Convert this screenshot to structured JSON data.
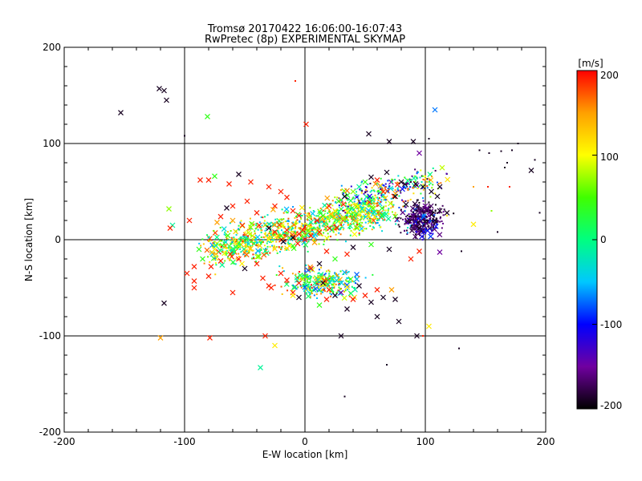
{
  "chart_data": {
    "type": "scatter",
    "title": "Tromsø 20170422 16:06:00-16:07:43",
    "subtitle": "RwPretec (8p) EXPERIMENTAL SKYMAP",
    "xlabel": "E-W location [km]",
    "ylabel": "N-S location [km]",
    "xlim": [
      -200,
      200
    ],
    "ylim": [
      -200,
      200
    ],
    "xticks": [
      "-200",
      "-100",
      "0",
      "100",
      "200"
    ],
    "yticks": [
      "-200",
      "-100",
      "0",
      "100",
      "200"
    ],
    "grid": "lines at -100, 0, 100 on both axes",
    "markers": "small dots and crosses, colored by velocity",
    "colorbar": {
      "label": "[m/s]",
      "range": [
        -200,
        200
      ],
      "ticks": [
        "200",
        "100",
        "0",
        "-100",
        "-200"
      ],
      "colormap": [
        "#000000",
        "#7000a0",
        "#0000ff",
        "#00c8ff",
        "#00ff80",
        "#40ff00",
        "#ffff00",
        "#ffa000",
        "#ff0000"
      ]
    },
    "points": [
      {
        "x": -121,
        "y": 157,
        "v": -190,
        "m": "x"
      },
      {
        "x": -117,
        "y": 155,
        "v": -190,
        "m": "x"
      },
      {
        "x": -115,
        "y": 145,
        "v": -190,
        "m": "x"
      },
      {
        "x": -153,
        "y": 132,
        "v": -190,
        "m": "x"
      },
      {
        "x": -81,
        "y": 128,
        "v": 40,
        "m": "x"
      },
      {
        "x": 1,
        "y": 120,
        "v": 190,
        "m": "x"
      },
      {
        "x": -8,
        "y": 165,
        "v": 190,
        "m": "d"
      },
      {
        "x": -100,
        "y": 108,
        "v": -190,
        "m": "d"
      },
      {
        "x": 53,
        "y": 110,
        "v": -190,
        "m": "x"
      },
      {
        "x": 70,
        "y": 102,
        "v": -190,
        "m": "x"
      },
      {
        "x": 90,
        "y": 102,
        "v": -190,
        "m": "x"
      },
      {
        "x": 108,
        "y": 135,
        "v": -70,
        "m": "x"
      },
      {
        "x": 95,
        "y": 90,
        "v": -150,
        "m": "x"
      },
      {
        "x": 153,
        "y": 90,
        "v": -190,
        "m": "d"
      },
      {
        "x": 163,
        "y": 92,
        "v": -190,
        "m": "d"
      },
      {
        "x": 172,
        "y": 93,
        "v": -190,
        "m": "d"
      },
      {
        "x": 177,
        "y": 100,
        "v": -190,
        "m": "d"
      },
      {
        "x": 168,
        "y": 80,
        "v": -190,
        "m": "d"
      },
      {
        "x": 145,
        "y": 93,
        "v": -190,
        "m": "d"
      },
      {
        "x": 191,
        "y": 83,
        "v": -190,
        "m": "d"
      },
      {
        "x": 188,
        "y": 72,
        "v": -190,
        "m": "x"
      },
      {
        "x": 166,
        "y": 75,
        "v": -190,
        "m": "d"
      },
      {
        "x": 103,
        "y": 105,
        "v": -190,
        "m": "d"
      },
      {
        "x": -87,
        "y": 62,
        "v": 190,
        "m": "x"
      },
      {
        "x": -80,
        "y": 62,
        "v": 190,
        "m": "x"
      },
      {
        "x": -75,
        "y": 66,
        "v": 40,
        "m": "x"
      },
      {
        "x": -63,
        "y": 58,
        "v": 190,
        "m": "x"
      },
      {
        "x": -55,
        "y": 68,
        "v": -190,
        "m": "x"
      },
      {
        "x": -45,
        "y": 60,
        "v": 190,
        "m": "x"
      },
      {
        "x": -30,
        "y": 55,
        "v": 190,
        "m": "x"
      },
      {
        "x": -20,
        "y": 50,
        "v": 190,
        "m": "x"
      },
      {
        "x": -65,
        "y": 33,
        "v": -190,
        "m": "x"
      },
      {
        "x": -60,
        "y": 35,
        "v": 190,
        "m": "x"
      },
      {
        "x": -48,
        "y": 40,
        "v": 190,
        "m": "x"
      },
      {
        "x": -40,
        "y": 28,
        "v": 190,
        "m": "x"
      },
      {
        "x": -25,
        "y": 35,
        "v": 190,
        "m": "x"
      },
      {
        "x": -15,
        "y": 44,
        "v": 190,
        "m": "x"
      },
      {
        "x": -10,
        "y": 30,
        "v": 190,
        "m": "x"
      },
      {
        "x": -5,
        "y": 25,
        "v": 190,
        "m": "x"
      },
      {
        "x": -113,
        "y": 32,
        "v": 70,
        "m": "x"
      },
      {
        "x": -110,
        "y": 15,
        "v": -10,
        "m": "x"
      },
      {
        "x": -112,
        "y": 12,
        "v": 190,
        "m": "x"
      },
      {
        "x": -96,
        "y": 20,
        "v": 190,
        "m": "x"
      },
      {
        "x": -73,
        "y": 18,
        "v": 150,
        "m": "x"
      },
      {
        "x": -70,
        "y": 24,
        "v": 190,
        "m": "x"
      },
      {
        "x": -60,
        "y": 20,
        "v": 150,
        "m": "x"
      },
      {
        "x": -52,
        "y": 15,
        "v": 190,
        "m": "x"
      },
      {
        "x": -45,
        "y": 13,
        "v": 70,
        "m": "x"
      },
      {
        "x": -38,
        "y": 15,
        "v": 190,
        "m": "x"
      },
      {
        "x": -30,
        "y": 12,
        "v": -190,
        "m": "x"
      },
      {
        "x": -25,
        "y": 8,
        "v": 190,
        "m": "x"
      },
      {
        "x": -20,
        "y": 4,
        "v": 40,
        "m": "x"
      },
      {
        "x": -15,
        "y": 10,
        "v": 190,
        "m": "x"
      },
      {
        "x": -10,
        "y": 2,
        "v": -190,
        "m": "x"
      },
      {
        "x": -5,
        "y": 6,
        "v": 190,
        "m": "x"
      },
      {
        "x": 0,
        "y": 0,
        "v": 190,
        "m": "x"
      },
      {
        "x": 5,
        "y": 4,
        "v": 190,
        "m": "x"
      },
      {
        "x": 8,
        "y": -3,
        "v": 150,
        "m": "x"
      },
      {
        "x": 12,
        "y": 8,
        "v": 190,
        "m": "x"
      },
      {
        "x": -2,
        "y": 10,
        "v": 190,
        "m": "x"
      },
      {
        "x": 3,
        "y": 14,
        "v": 110,
        "m": "x"
      },
      {
        "x": -6,
        "y": -4,
        "v": 190,
        "m": "x"
      },
      {
        "x": -18,
        "y": -2,
        "v": -190,
        "m": "x"
      },
      {
        "x": 10,
        "y": 20,
        "v": 190,
        "m": "x"
      },
      {
        "x": 15,
        "y": 25,
        "v": 40,
        "m": "x"
      },
      {
        "x": 20,
        "y": 35,
        "v": 190,
        "m": "x"
      },
      {
        "x": 25,
        "y": 30,
        "v": 110,
        "m": "x"
      },
      {
        "x": 28,
        "y": 40,
        "v": 40,
        "m": "x"
      },
      {
        "x": 33,
        "y": 45,
        "v": -190,
        "m": "x"
      },
      {
        "x": 40,
        "y": 50,
        "v": 70,
        "m": "x"
      },
      {
        "x": 45,
        "y": 55,
        "v": -10,
        "m": "x"
      },
      {
        "x": 50,
        "y": 60,
        "v": 40,
        "m": "x"
      },
      {
        "x": 55,
        "y": 65,
        "v": -190,
        "m": "x"
      },
      {
        "x": 60,
        "y": 62,
        "v": 190,
        "m": "x"
      },
      {
        "x": 68,
        "y": 70,
        "v": -190,
        "m": "x"
      },
      {
        "x": 75,
        "y": 45,
        "v": -190,
        "m": "x"
      },
      {
        "x": 80,
        "y": 60,
        "v": -190,
        "m": "x"
      },
      {
        "x": 92,
        "y": 58,
        "v": -190,
        "m": "x"
      },
      {
        "x": 98,
        "y": 55,
        "v": -190,
        "m": "x"
      },
      {
        "x": 105,
        "y": 50,
        "v": -190,
        "m": "x"
      },
      {
        "x": 110,
        "y": 45,
        "v": -190,
        "m": "x"
      },
      {
        "x": 100,
        "y": 35,
        "v": -150,
        "m": "x"
      },
      {
        "x": 103,
        "y": 25,
        "v": -150,
        "m": "x"
      },
      {
        "x": 108,
        "y": 20,
        "v": -190,
        "m": "x"
      },
      {
        "x": 95,
        "y": 12,
        "v": -190,
        "m": "x"
      },
      {
        "x": 112,
        "y": 30,
        "v": -190,
        "m": "x"
      },
      {
        "x": 118,
        "y": 28,
        "v": -190,
        "m": "x"
      },
      {
        "x": 140,
        "y": 16,
        "v": 110,
        "m": "x"
      },
      {
        "x": 112,
        "y": 55,
        "v": -190,
        "m": "x"
      },
      {
        "x": 112,
        "y": -13,
        "v": -150,
        "m": "x"
      },
      {
        "x": 95,
        "y": -12,
        "v": 190,
        "m": "x"
      },
      {
        "x": 88,
        "y": -20,
        "v": 190,
        "m": "x"
      },
      {
        "x": 70,
        "y": -10,
        "v": -190,
        "m": "x"
      },
      {
        "x": 55,
        "y": -5,
        "v": 40,
        "m": "x"
      },
      {
        "x": 40,
        "y": -8,
        "v": -190,
        "m": "x"
      },
      {
        "x": 35,
        "y": -15,
        "v": 190,
        "m": "x"
      },
      {
        "x": 25,
        "y": -20,
        "v": 40,
        "m": "x"
      },
      {
        "x": 18,
        "y": -12,
        "v": 190,
        "m": "x"
      },
      {
        "x": 12,
        "y": -25,
        "v": -190,
        "m": "x"
      },
      {
        "x": 5,
        "y": -30,
        "v": 190,
        "m": "x"
      },
      {
        "x": 0,
        "y": -38,
        "v": 40,
        "m": "x"
      },
      {
        "x": -5,
        "y": -45,
        "v": 190,
        "m": "x"
      },
      {
        "x": -10,
        "y": -55,
        "v": 190,
        "m": "x"
      },
      {
        "x": -15,
        "y": -42,
        "v": 190,
        "m": "x"
      },
      {
        "x": -20,
        "y": -35,
        "v": 190,
        "m": "x"
      },
      {
        "x": -28,
        "y": -50,
        "v": 190,
        "m": "x"
      },
      {
        "x": -35,
        "y": -40,
        "v": 190,
        "m": "x"
      },
      {
        "x": -40,
        "y": -25,
        "v": 190,
        "m": "x"
      },
      {
        "x": -50,
        "y": -30,
        "v": -190,
        "m": "x"
      },
      {
        "x": -55,
        "y": -20,
        "v": 190,
        "m": "x"
      },
      {
        "x": -62,
        "y": -15,
        "v": 190,
        "m": "x"
      },
      {
        "x": -70,
        "y": -22,
        "v": 190,
        "m": "x"
      },
      {
        "x": -78,
        "y": -28,
        "v": 190,
        "m": "x"
      },
      {
        "x": -85,
        "y": -20,
        "v": 40,
        "m": "x"
      },
      {
        "x": -92,
        "y": -28,
        "v": 190,
        "m": "x"
      },
      {
        "x": -98,
        "y": -35,
        "v": 190,
        "m": "x"
      },
      {
        "x": -92,
        "y": -43,
        "v": 190,
        "m": "x"
      },
      {
        "x": -80,
        "y": -38,
        "v": 190,
        "m": "x"
      },
      {
        "x": -75,
        "y": -10,
        "v": 110,
        "m": "x"
      },
      {
        "x": -88,
        "y": -10,
        "v": 40,
        "m": "x"
      },
      {
        "x": -117,
        "y": -66,
        "v": -190,
        "m": "x"
      },
      {
        "x": -92,
        "y": -50,
        "v": 190,
        "m": "x"
      },
      {
        "x": 15,
        "y": -45,
        "v": -190,
        "m": "x"
      },
      {
        "x": 20,
        "y": -52,
        "v": 190,
        "m": "x"
      },
      {
        "x": 25,
        "y": -58,
        "v": -190,
        "m": "x"
      },
      {
        "x": 18,
        "y": -62,
        "v": 190,
        "m": "x"
      },
      {
        "x": 12,
        "y": -68,
        "v": 40,
        "m": "x"
      },
      {
        "x": 30,
        "y": -55,
        "v": -150,
        "m": "x"
      },
      {
        "x": 40,
        "y": -62,
        "v": 190,
        "m": "x"
      },
      {
        "x": 45,
        "y": -48,
        "v": -190,
        "m": "x"
      },
      {
        "x": 50,
        "y": -58,
        "v": 190,
        "m": "x"
      },
      {
        "x": 55,
        "y": -65,
        "v": -190,
        "m": "x"
      },
      {
        "x": 60,
        "y": -52,
        "v": 190,
        "m": "x"
      },
      {
        "x": 65,
        "y": -60,
        "v": -190,
        "m": "x"
      },
      {
        "x": 72,
        "y": -52,
        "v": 150,
        "m": "x"
      },
      {
        "x": 75,
        "y": -62,
        "v": -190,
        "m": "x"
      },
      {
        "x": 35,
        "y": -72,
        "v": -190,
        "m": "x"
      },
      {
        "x": 60,
        "y": -80,
        "v": -190,
        "m": "x"
      },
      {
        "x": 78,
        "y": -85,
        "v": -190,
        "m": "x"
      },
      {
        "x": 103,
        "y": -90,
        "v": 110,
        "m": "x"
      },
      {
        "x": -5,
        "y": -60,
        "v": -190,
        "m": "x"
      },
      {
        "x": -60,
        "y": -55,
        "v": 190,
        "m": "x"
      },
      {
        "x": -30,
        "y": -48,
        "v": 190,
        "m": "x"
      },
      {
        "x": -10,
        "y": -58,
        "v": 110,
        "m": "x"
      },
      {
        "x": -120,
        "y": -102,
        "v": 150,
        "m": "x"
      },
      {
        "x": -79,
        "y": -102,
        "v": 190,
        "m": "x"
      },
      {
        "x": -33,
        "y": -100,
        "v": 190,
        "m": "x"
      },
      {
        "x": -25,
        "y": -110,
        "v": 110,
        "m": "x"
      },
      {
        "x": -37,
        "y": -133,
        "v": -10,
        "m": "x"
      },
      {
        "x": 30,
        "y": -100,
        "v": -190,
        "m": "x"
      },
      {
        "x": 93,
        "y": -100,
        "v": -190,
        "m": "x"
      },
      {
        "x": 98,
        "y": -100,
        "v": 190,
        "m": "d"
      },
      {
        "x": 128,
        "y": -113,
        "v": -190,
        "m": "d"
      },
      {
        "x": 68,
        "y": -130,
        "v": -190,
        "m": "d"
      },
      {
        "x": 33,
        "y": -163,
        "v": -190,
        "m": "d"
      },
      {
        "x": 152,
        "y": 55,
        "v": 190,
        "m": "d"
      },
      {
        "x": 170,
        "y": 55,
        "v": 190,
        "m": "d"
      },
      {
        "x": 155,
        "y": 30,
        "v": 70,
        "m": "d"
      },
      {
        "x": 160,
        "y": 8,
        "v": -190,
        "m": "d"
      },
      {
        "x": 195,
        "y": 28,
        "v": -190,
        "m": "d"
      },
      {
        "x": 140,
        "y": 55,
        "v": 150,
        "m": "d"
      },
      {
        "x": 118,
        "y": 25,
        "v": 110,
        "m": "d"
      },
      {
        "x": 130,
        "y": -12,
        "v": -190,
        "m": "d"
      }
    ]
  }
}
